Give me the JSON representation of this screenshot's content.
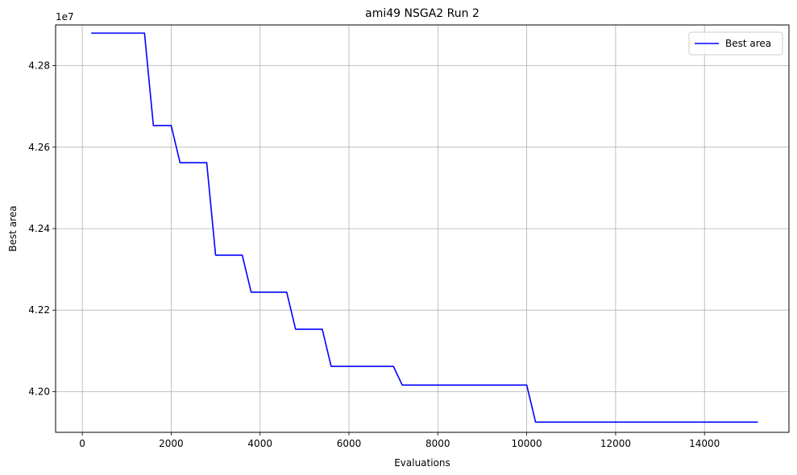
{
  "chart_data": {
    "type": "line",
    "title": "ami49 NSGA2 Run 2",
    "xlabel": "Evaluations",
    "ylabel": "Best area",
    "y_offset_label": "1e7",
    "xlim": [
      -600,
      15900
    ],
    "ylim": [
      41.9,
      42.9
    ],
    "y_unit_multiplier": 10000000.0,
    "x_ticks": [
      0,
      2000,
      4000,
      6000,
      8000,
      10000,
      12000,
      14000
    ],
    "x_tick_labels": [
      "0",
      "2000",
      "4000",
      "6000",
      "8000",
      "10000",
      "12000",
      "14000"
    ],
    "y_ticks": [
      42.0,
      42.2,
      42.4,
      42.6,
      42.8
    ],
    "y_tick_labels": [
      "4.20",
      "4.22",
      "4.24",
      "4.26",
      "4.28"
    ],
    "grid": true,
    "legend_position": "top-right",
    "series": [
      {
        "name": "Best area",
        "color": "#0000ff",
        "x": [
          200,
          1400,
          1600,
          2000,
          2200,
          2800,
          3000,
          3600,
          3800,
          4600,
          4800,
          5400,
          5600,
          7000,
          7200,
          10000,
          10200,
          15200
        ],
        "y": [
          42.88,
          42.88,
          42.653,
          42.653,
          42.562,
          42.562,
          42.335,
          42.335,
          42.244,
          42.244,
          42.153,
          42.153,
          42.062,
          42.062,
          42.016,
          42.016,
          41.925,
          41.925
        ]
      }
    ]
  }
}
